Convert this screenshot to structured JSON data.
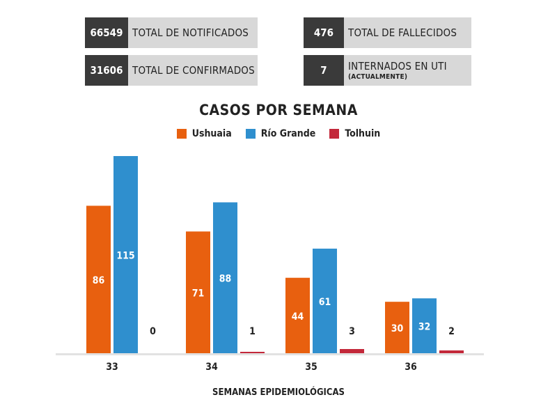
{
  "stats": {
    "notificados": {
      "value": "66549",
      "label": "TOTAL DE NOTIFICADOS"
    },
    "confirmados": {
      "value": "31606",
      "label": "TOTAL DE CONFIRMADOS"
    },
    "fallecidos": {
      "value": "476",
      "label": "TOTAL DE FALLECIDOS"
    },
    "internados": {
      "value": "7",
      "label": "INTERNADOS EN UTI",
      "sublabel": "(ACTUALMENTE)"
    }
  },
  "colors": {
    "ushuaia": "#e8600f",
    "rio_grande": "#2f8fce",
    "tolhuin": "#c3283a"
  },
  "chart_data": {
    "type": "bar",
    "title": "CASOS POR SEMANA",
    "xlabel": "SEMANAS EPIDEMIOLÓGICAS",
    "ylabel": "",
    "categories": [
      "33",
      "34",
      "35",
      "36"
    ],
    "series": [
      {
        "name": "Ushuaia",
        "values": [
          86,
          71,
          44,
          30
        ]
      },
      {
        "name": "Río Grande",
        "values": [
          115,
          88,
          61,
          32
        ]
      },
      {
        "name": "Tolhuin",
        "values": [
          0,
          1,
          3,
          2
        ]
      }
    ],
    "ylim": [
      0,
      115
    ],
    "legend": "top-center",
    "grid": false
  }
}
